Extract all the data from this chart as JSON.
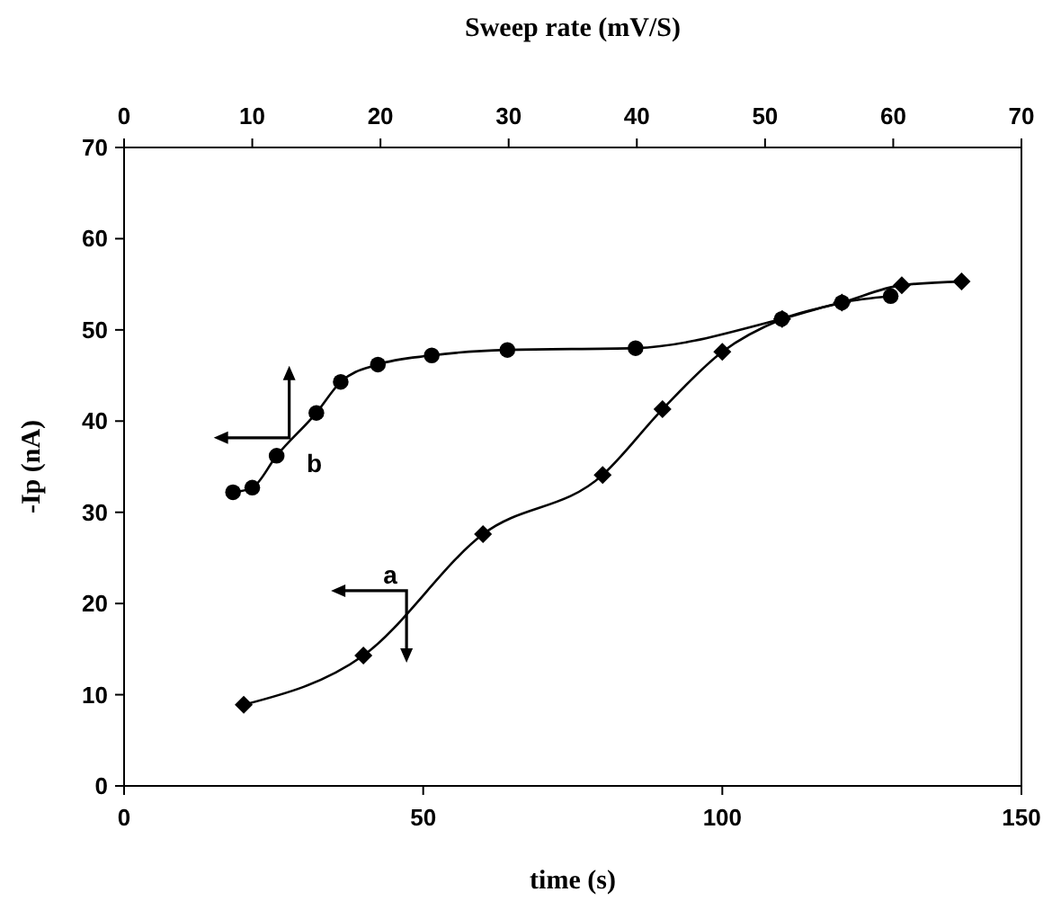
{
  "chart_data": {
    "type": "line",
    "xlabel": "time (s)",
    "x2label": "Sweep rate (mV/S)",
    "ylabel": "-Ip (nA)",
    "xlim": [
      0,
      150
    ],
    "xticks": [
      0,
      50,
      100,
      150
    ],
    "x2lim": [
      0,
      70
    ],
    "x2ticks": [
      0,
      10,
      20,
      30,
      40,
      50,
      60,
      70
    ],
    "ylim": [
      0,
      70
    ],
    "yticks": [
      0,
      10,
      20,
      30,
      40,
      50,
      60,
      70
    ],
    "grid": false,
    "line_style": "solid",
    "series": [
      {
        "name": "a",
        "color": "#000000",
        "marker": "diamond",
        "x": [
          20,
          40,
          60,
          80,
          90,
          100,
          110,
          120,
          130,
          140
        ],
        "values": [
          8.9,
          14.3,
          27.6,
          34.1,
          41.3,
          47.6,
          51.2,
          53.0,
          54.9,
          55.3
        ]
      },
      {
        "name": "b",
        "color": "#000000",
        "marker": "circle",
        "axis": "x2",
        "x": [
          8.5,
          10,
          11.9,
          15,
          16.9,
          19.8,
          24,
          29.9,
          39.9,
          51.3,
          56,
          59.8
        ],
        "values": [
          32.2,
          32.7,
          36.2,
          40.9,
          44.3,
          46.2,
          47.2,
          47.8,
          48,
          51.2,
          53,
          53.7
        ]
      }
    ]
  }
}
